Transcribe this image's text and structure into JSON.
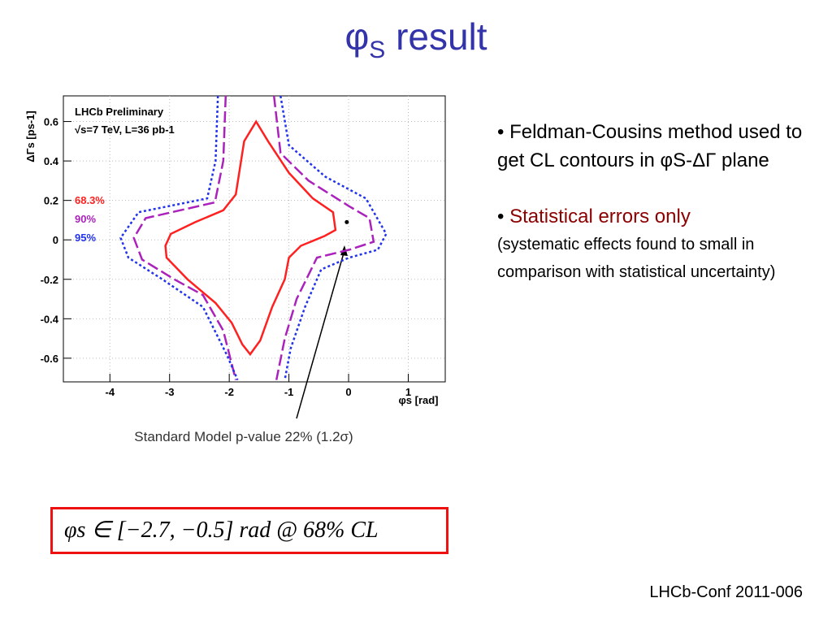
{
  "title": {
    "symbol": "φ",
    "subscript": "S",
    "text": "result"
  },
  "chart_data": {
    "type": "contour",
    "xlabel": "φs [rad]",
    "ylabel": "ΔΓs [ps-1]",
    "header": [
      "LHCb Preliminary",
      "√s=7 TeV, L=36 pb-1"
    ],
    "xlim": [
      -4.78,
      1.62
    ],
    "ylim": [
      -0.72,
      0.73
    ],
    "xticks": [
      -4,
      -3,
      -2,
      -1,
      0,
      1
    ],
    "yticks": [
      0.6,
      0.4,
      0.2,
      0,
      -0.2,
      -0.4,
      -0.6
    ],
    "grid": true,
    "series": [
      {
        "name": "68.3%",
        "color": "#ff2020",
        "dash": "solid",
        "closed": true,
        "x": [
          -1.55,
          -1.35,
          -1.0,
          -0.6,
          -0.26,
          -0.22,
          -0.4,
          -0.8,
          -1.0,
          -1.07,
          -1.28,
          -1.48,
          -1.65,
          -1.78,
          -1.96,
          -2.23,
          -2.7,
          -3.05,
          -3.07,
          -2.98,
          -2.57,
          -2.1,
          -1.89,
          -1.75
        ],
        "y": [
          0.6,
          0.5,
          0.34,
          0.21,
          0.14,
          0.05,
          0.02,
          -0.03,
          -0.09,
          -0.2,
          -0.34,
          -0.51,
          -0.58,
          -0.53,
          -0.42,
          -0.32,
          -0.2,
          -0.09,
          -0.03,
          0.03,
          0.09,
          0.15,
          0.23,
          0.5
        ]
      },
      {
        "name": "90%",
        "color": "#aa22bb",
        "dash": "long",
        "closed": false,
        "x": [
          -2.06,
          -2.1,
          -2.24,
          -3.4,
          -3.6,
          -3.46,
          -2.92,
          -2.44,
          -2.1,
          -1.89,
          null,
          -1.25,
          -1.14,
          -0.67,
          0.01,
          0.35,
          0.42,
          0.01,
          -0.53,
          -0.87,
          -1.07,
          -1.21
        ],
        "y": [
          0.73,
          0.4,
          0.19,
          0.11,
          0.01,
          -0.1,
          -0.2,
          -0.28,
          -0.46,
          -0.71,
          null,
          0.73,
          0.44,
          0.3,
          0.17,
          0.11,
          -0.01,
          -0.05,
          -0.09,
          -0.3,
          -0.5,
          -0.71
        ]
      },
      {
        "name": "95%",
        "color": "#2233ee",
        "dash": "dot",
        "closed": false,
        "x": [
          -2.19,
          -2.23,
          -2.37,
          -3.52,
          -3.82,
          -3.69,
          -3.12,
          -2.44,
          -2.03,
          -1.86,
          null,
          -1.14,
          -1.0,
          -0.39,
          0.29,
          0.63,
          0.49,
          0.01,
          -0.46,
          -0.73,
          -0.97,
          -1.07
        ],
        "y": [
          0.73,
          0.4,
          0.21,
          0.14,
          0.01,
          -0.09,
          -0.2,
          -0.34,
          -0.59,
          -0.71,
          null,
          0.73,
          0.48,
          0.32,
          0.21,
          0.03,
          -0.05,
          -0.09,
          -0.15,
          -0.34,
          -0.55,
          -0.71
        ]
      }
    ],
    "marker": {
      "x": -0.03,
      "y": 0.09
    },
    "annotation": "Standard Model p-value 22% (1.2σ)"
  },
  "bullets": [
    {
      "text": "Feldman-Cousins method used to get CL contours in φS-ΔΓ plane"
    },
    {
      "text": "Statistical errors only",
      "note": "(systematic effects found to small in comparison with statistical uncertainty)"
    }
  ],
  "formula": "φs ∈ [−2.7, −0.5] rad @ 68% CL",
  "footer": "LHCb-Conf 2011-006"
}
